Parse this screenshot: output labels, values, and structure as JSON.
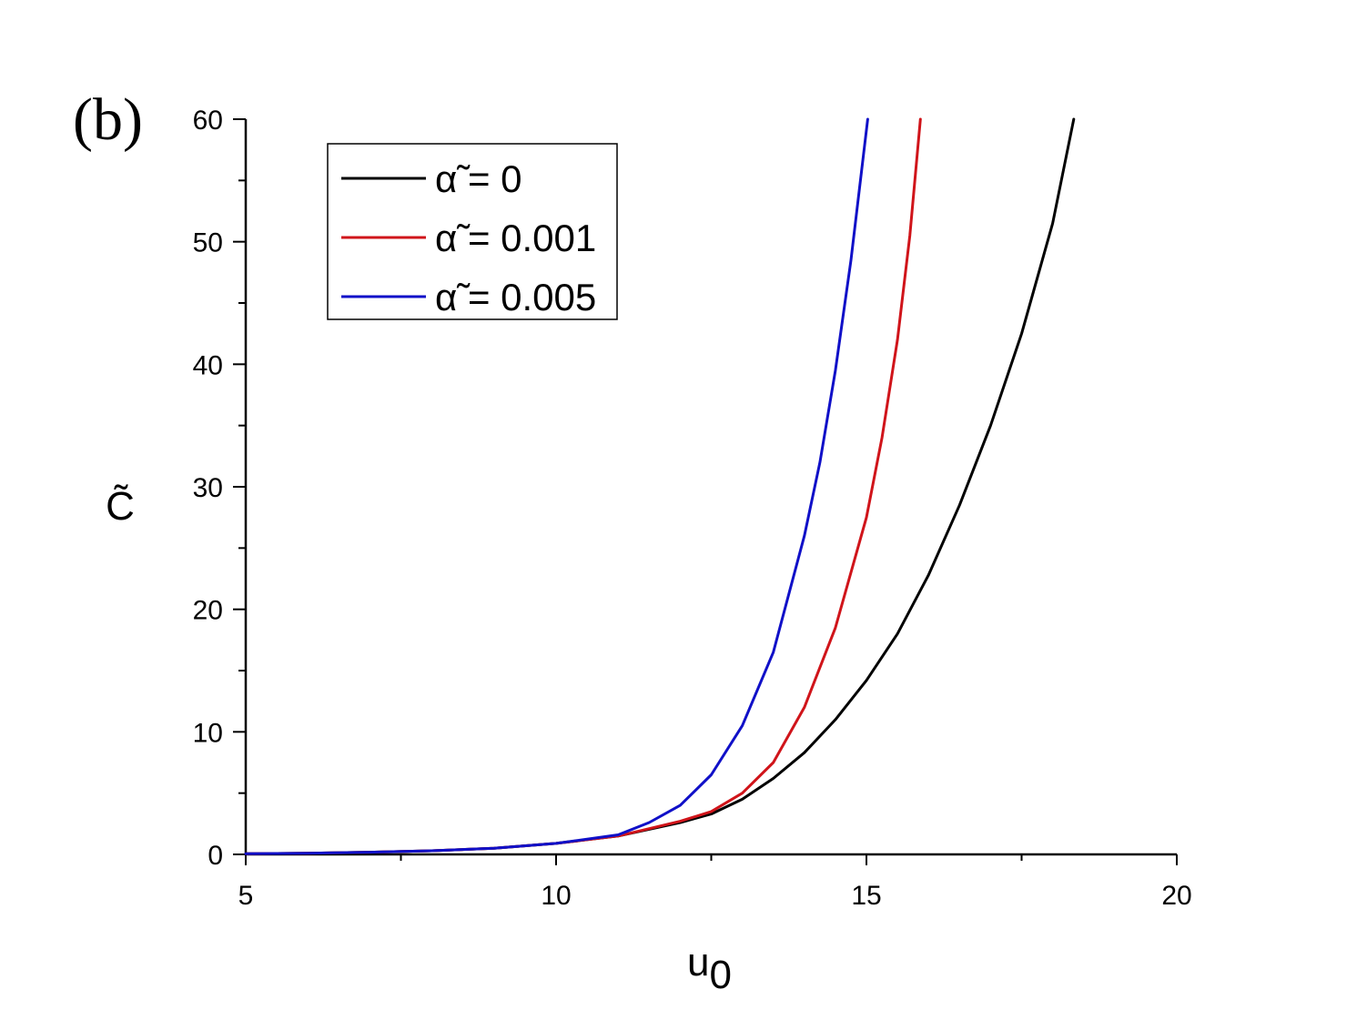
{
  "panel_label": "(b)",
  "colors": {
    "axis": "#000000",
    "series": [
      "#000000",
      "#d0141a",
      "#1010c8"
    ]
  },
  "chart_data": {
    "type": "line",
    "xlabel": "u",
    "xlabel_subscript": "0",
    "ylabel": "C̃",
    "xlim": [
      5,
      20
    ],
    "ylim": [
      0,
      60
    ],
    "x_ticks": [
      5,
      10,
      15,
      20
    ],
    "x_tick_labels": [
      "5",
      "10",
      "15",
      "20"
    ],
    "y_ticks": [
      0,
      10,
      20,
      30,
      40,
      50,
      60
    ],
    "y_tick_labels": [
      "0",
      "10",
      "20",
      "30",
      "40",
      "50",
      "60"
    ],
    "grid": false,
    "legend_position": "top-left",
    "series": [
      {
        "name": "α̃ = 0",
        "color": "#000000",
        "x": [
          5,
          6,
          7,
          8,
          9,
          10,
          11,
          12,
          12.5,
          13,
          13.5,
          14,
          14.5,
          15,
          15.5,
          16,
          16.5,
          17,
          17.5,
          18,
          18.34
        ],
        "y": [
          0.05,
          0.1,
          0.18,
          0.3,
          0.5,
          0.9,
          1.5,
          2.6,
          3.3,
          4.5,
          6.2,
          8.3,
          11.0,
          14.2,
          18.0,
          22.8,
          28.5,
          35.0,
          42.5,
          51.5,
          60
        ]
      },
      {
        "name": "α̃ = 0.001",
        "color": "#d0141a",
        "x": [
          5,
          6,
          7,
          8,
          9,
          10,
          11,
          12,
          12.5,
          13,
          13.5,
          14,
          14.5,
          15,
          15.25,
          15.5,
          15.7,
          15.87
        ],
        "y": [
          0.05,
          0.1,
          0.18,
          0.3,
          0.5,
          0.9,
          1.5,
          2.7,
          3.5,
          5.0,
          7.5,
          12.0,
          18.5,
          27.5,
          34.0,
          42.0,
          50.5,
          60
        ]
      },
      {
        "name": "α̃ = 0.005",
        "color": "#1010c8",
        "x": [
          5,
          6,
          7,
          8,
          9,
          10,
          11,
          11.5,
          12,
          12.5,
          13,
          13.5,
          14,
          14.25,
          14.5,
          14.75,
          15.02
        ],
        "y": [
          0.05,
          0.1,
          0.18,
          0.3,
          0.5,
          0.9,
          1.6,
          2.6,
          4.0,
          6.5,
          10.5,
          16.5,
          26.0,
          32.0,
          39.5,
          48.5,
          60
        ]
      }
    ]
  }
}
